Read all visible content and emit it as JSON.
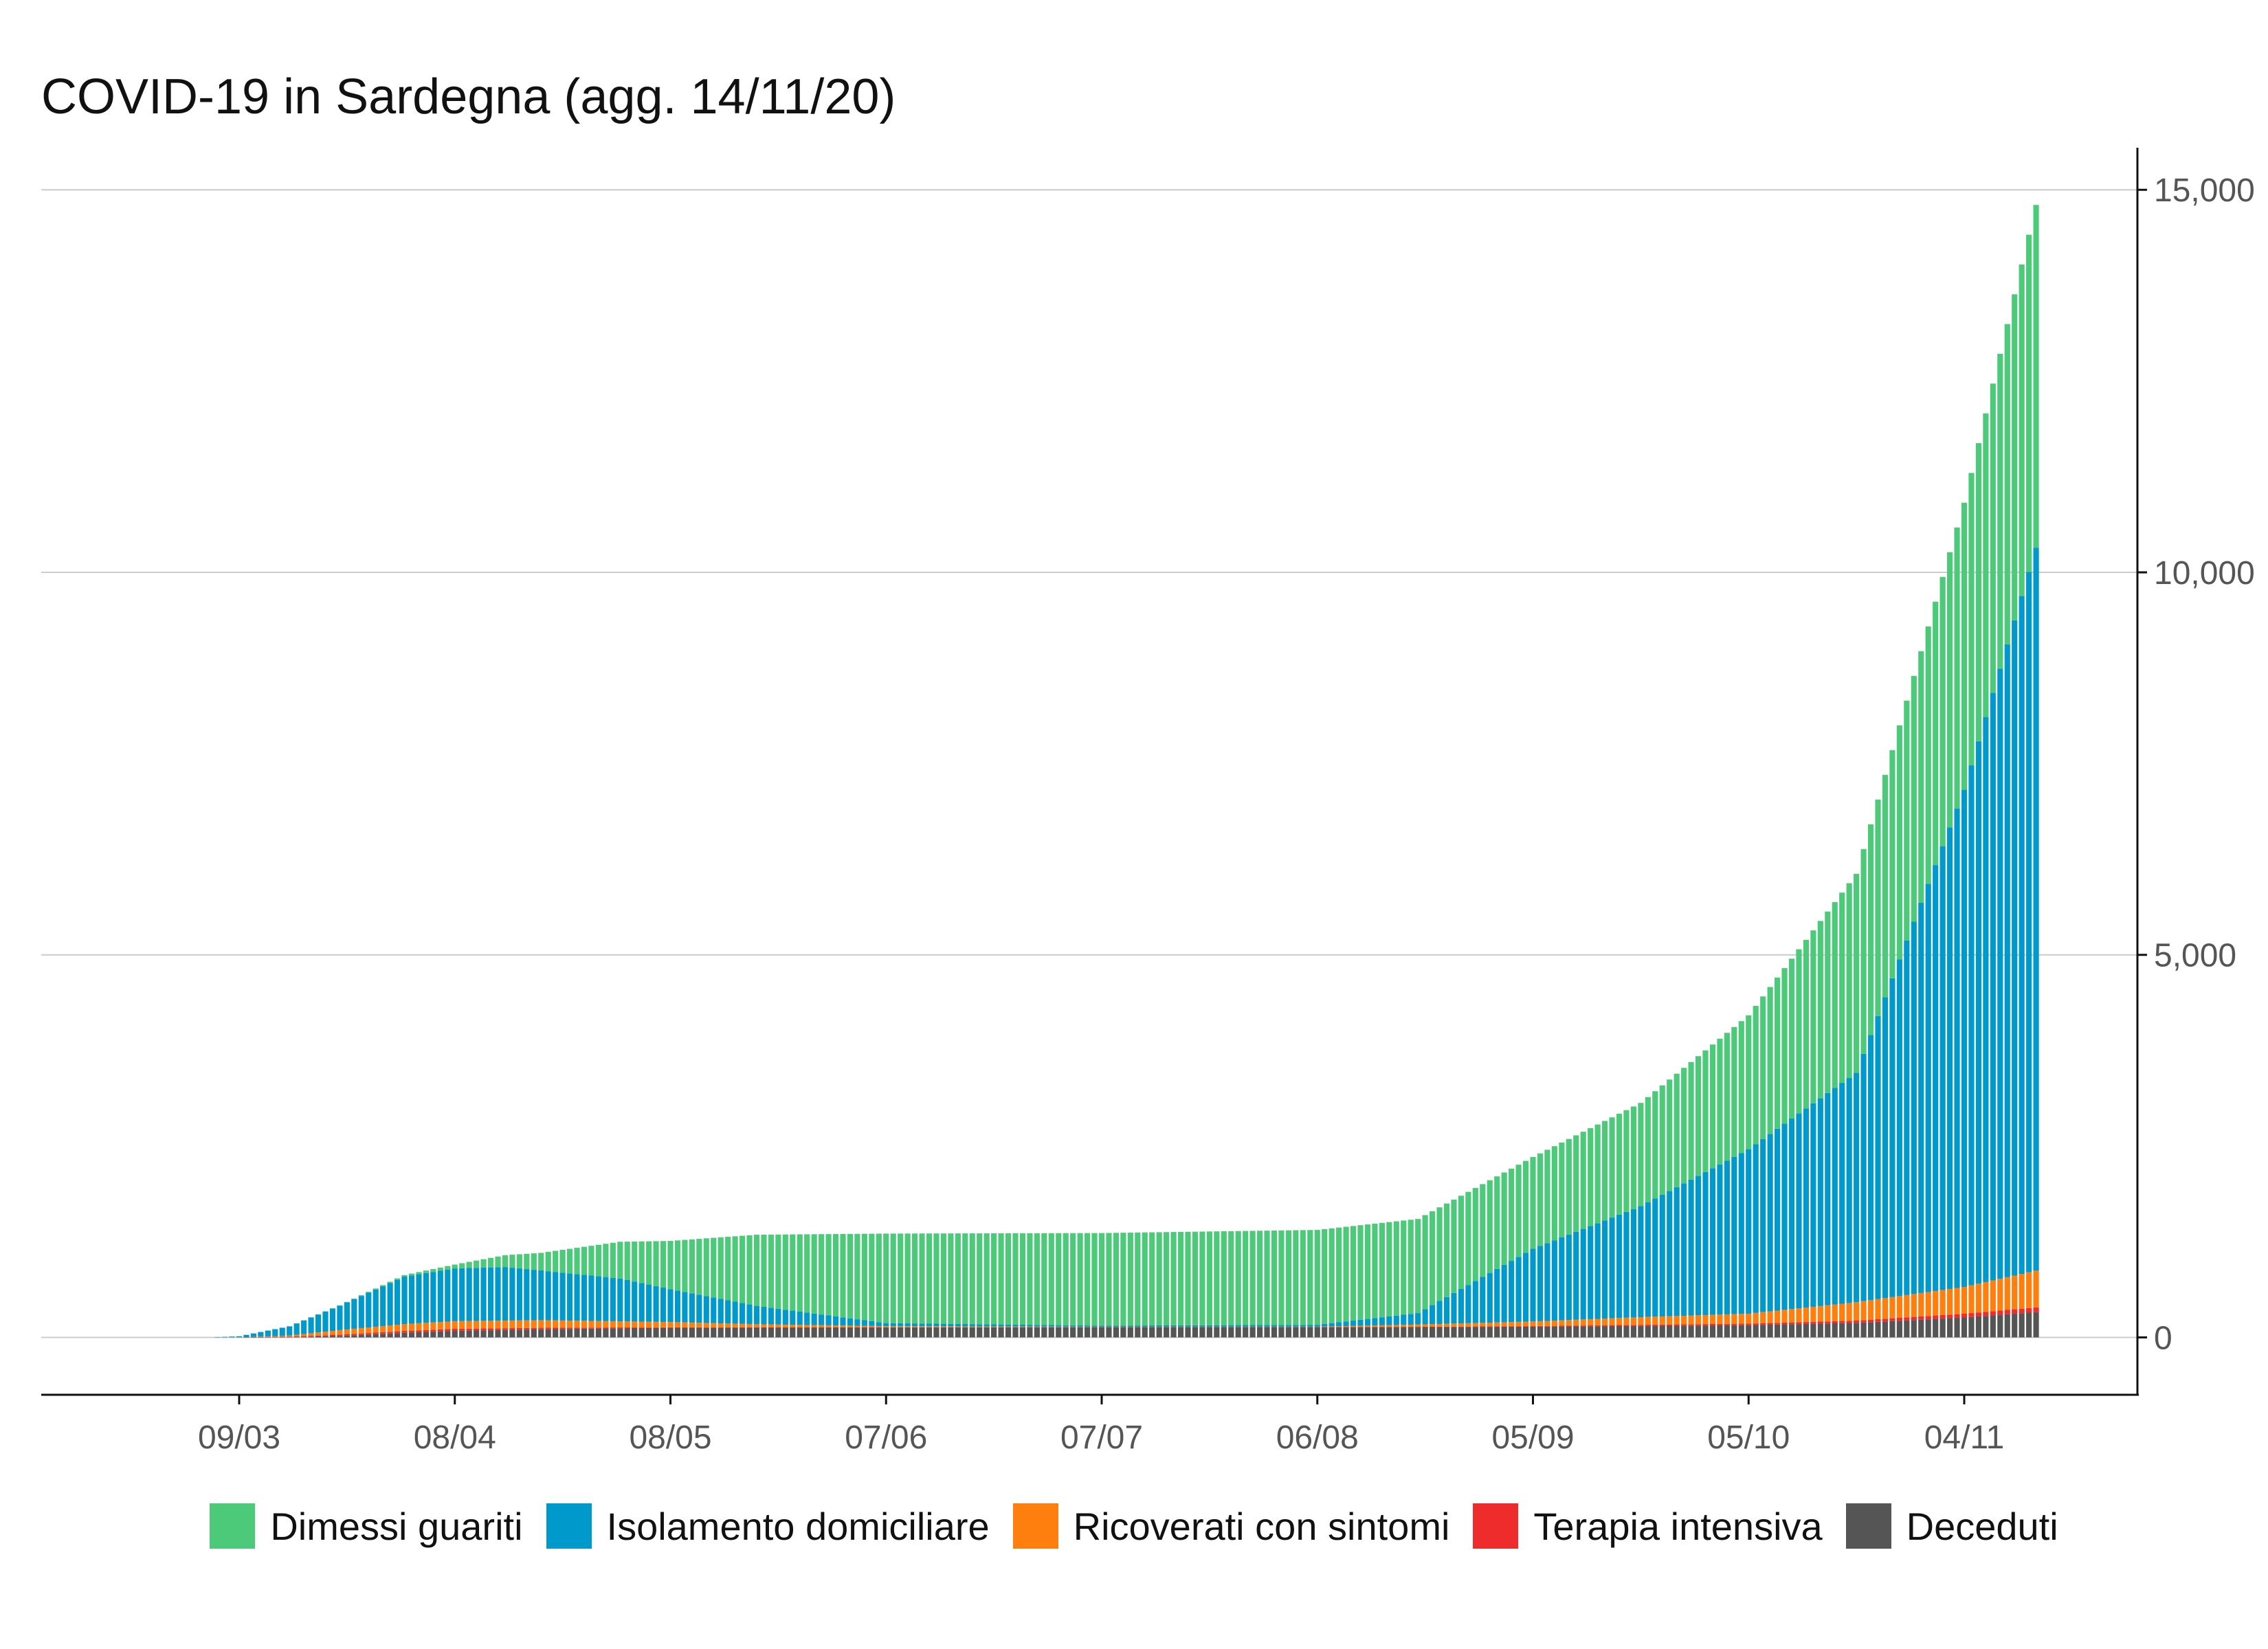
{
  "chart_data": {
    "type": "bar",
    "stacked": true,
    "title": "COVID-19 in Sardegna (agg. 14/11/20)",
    "xlabel": "",
    "ylabel": "",
    "y_axis_side": "right",
    "grid": true,
    "legend_position": "bottom",
    "x_start_date": "2020-02-24",
    "x_end_date": "2020-11-14",
    "x_tick_dates": [
      "2020-03-09",
      "2020-04-08",
      "2020-05-08",
      "2020-06-07",
      "2020-07-07",
      "2020-08-06",
      "2020-09-05",
      "2020-10-05",
      "2020-11-04"
    ],
    "x_tick_labels": [
      "09/03",
      "08/04",
      "08/05",
      "07/06",
      "07/07",
      "06/08",
      "05/09",
      "05/10",
      "04/11"
    ],
    "ylim": [
      -750,
      15550
    ],
    "y_ticks": [
      0,
      5000,
      10000,
      15000
    ],
    "y_tick_labels": [
      "0",
      "5,000",
      "10,000",
      "15,000"
    ],
    "series_order_bottom_to_top": [
      "Deceduti",
      "Terapia intensiva",
      "Ricoverati con sintomi",
      "Isolamento domiciliare",
      "Dimessi guariti"
    ],
    "series": [
      {
        "name": "Deceduti",
        "color": "#555555",
        "points": [
          [
            "2020-02-24",
            0
          ],
          [
            "2020-03-09",
            0
          ],
          [
            "2020-03-16",
            5
          ],
          [
            "2020-03-23",
            20
          ],
          [
            "2020-04-01",
            60
          ],
          [
            "2020-04-08",
            85
          ],
          [
            "2020-04-20",
            105
          ],
          [
            "2020-05-01",
            120
          ],
          [
            "2020-05-08",
            125
          ],
          [
            "2020-05-20",
            130
          ],
          [
            "2020-06-07",
            132
          ],
          [
            "2020-07-07",
            134
          ],
          [
            "2020-08-06",
            135
          ],
          [
            "2020-08-20",
            136
          ],
          [
            "2020-09-05",
            140
          ],
          [
            "2020-09-20",
            150
          ],
          [
            "2020-10-05",
            160
          ],
          [
            "2020-10-20",
            190
          ],
          [
            "2020-11-04",
            260
          ],
          [
            "2020-11-14",
            330
          ]
        ]
      },
      {
        "name": "Terapia intensiva",
        "color": "#ee2c2c",
        "points": [
          [
            "2020-02-24",
            0
          ],
          [
            "2020-03-09",
            0
          ],
          [
            "2020-03-16",
            5
          ],
          [
            "2020-03-23",
            15
          ],
          [
            "2020-04-01",
            25
          ],
          [
            "2020-04-08",
            27
          ],
          [
            "2020-04-20",
            20
          ],
          [
            "2020-05-01",
            10
          ],
          [
            "2020-05-08",
            6
          ],
          [
            "2020-05-20",
            2
          ],
          [
            "2020-06-07",
            0
          ],
          [
            "2020-07-07",
            0
          ],
          [
            "2020-08-06",
            0
          ],
          [
            "2020-08-20",
            2
          ],
          [
            "2020-09-05",
            8
          ],
          [
            "2020-09-20",
            15
          ],
          [
            "2020-10-05",
            20
          ],
          [
            "2020-10-20",
            30
          ],
          [
            "2020-11-04",
            50
          ],
          [
            "2020-11-14",
            62
          ]
        ]
      },
      {
        "name": "Ricoverati con sintomi",
        "color": "#ff7f0e",
        "points": [
          [
            "2020-02-24",
            0
          ],
          [
            "2020-03-09",
            0
          ],
          [
            "2020-03-16",
            15
          ],
          [
            "2020-03-23",
            60
          ],
          [
            "2020-04-01",
            90
          ],
          [
            "2020-04-08",
            100
          ],
          [
            "2020-04-20",
            100
          ],
          [
            "2020-05-01",
            80
          ],
          [
            "2020-05-08",
            70
          ],
          [
            "2020-05-20",
            40
          ],
          [
            "2020-06-07",
            15
          ],
          [
            "2020-07-07",
            5
          ],
          [
            "2020-08-06",
            5
          ],
          [
            "2020-08-20",
            30
          ],
          [
            "2020-09-05",
            60
          ],
          [
            "2020-09-20",
            100
          ],
          [
            "2020-10-05",
            130
          ],
          [
            "2020-10-20",
            240
          ],
          [
            "2020-11-04",
            350
          ],
          [
            "2020-11-14",
            480
          ]
        ]
      },
      {
        "name": "Isolamento domiciliare",
        "color": "#0099cc",
        "points": [
          [
            "2020-02-24",
            0
          ],
          [
            "2020-03-05",
            0
          ],
          [
            "2020-03-09",
            15
          ],
          [
            "2020-03-16",
            120
          ],
          [
            "2020-03-23",
            320
          ],
          [
            "2020-04-01",
            620
          ],
          [
            "2020-04-08",
            690
          ],
          [
            "2020-04-15",
            700
          ],
          [
            "2020-04-20",
            650
          ],
          [
            "2020-05-01",
            560
          ],
          [
            "2020-05-08",
            430
          ],
          [
            "2020-05-20",
            240
          ],
          [
            "2020-06-07",
            40
          ],
          [
            "2020-07-07",
            15
          ],
          [
            "2020-08-06",
            25
          ],
          [
            "2020-08-20",
            150
          ],
          [
            "2020-09-05",
            950
          ],
          [
            "2020-09-20",
            1450
          ],
          [
            "2020-10-05",
            2150
          ],
          [
            "2020-10-20",
            3000
          ],
          [
            "2020-11-04",
            6500
          ],
          [
            "2020-11-14",
            9450
          ]
        ]
      },
      {
        "name": "Dimessi guariti",
        "color": "#4dc97a",
        "points": [
          [
            "2020-02-24",
            0
          ],
          [
            "2020-03-16",
            0
          ],
          [
            "2020-03-23",
            5
          ],
          [
            "2020-04-01",
            20
          ],
          [
            "2020-04-08",
            50
          ],
          [
            "2020-04-20",
            230
          ],
          [
            "2020-05-01",
            480
          ],
          [
            "2020-05-08",
            630
          ],
          [
            "2020-05-20",
            930
          ],
          [
            "2020-06-07",
            1170
          ],
          [
            "2020-07-07",
            1210
          ],
          [
            "2020-08-06",
            1240
          ],
          [
            "2020-08-20",
            1230
          ],
          [
            "2020-09-05",
            1200
          ],
          [
            "2020-09-20",
            1350
          ],
          [
            "2020-10-05",
            1750
          ],
          [
            "2020-10-20",
            2600
          ],
          [
            "2020-11-04",
            3750
          ],
          [
            "2020-11-14",
            4480
          ]
        ]
      }
    ]
  }
}
